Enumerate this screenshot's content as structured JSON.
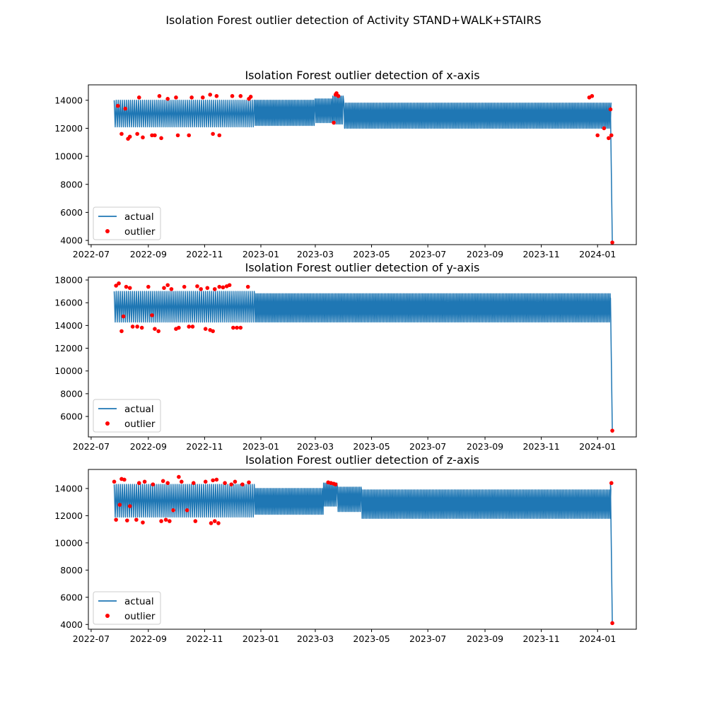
{
  "suptitle": "Isolation Forest outlier detection of Activity STAND+WALK+STAIRS",
  "colors": {
    "actual": "#1f77b4",
    "outlier": "#ff0000",
    "axes": "#000000"
  },
  "legend_labels": {
    "actual": "actual",
    "outlier": "outlier"
  },
  "x_tick_labels": [
    "2022-07",
    "2022-09",
    "2022-11",
    "2023-01",
    "2023-03",
    "2023-05",
    "2023-07",
    "2023-09",
    "2023-11",
    "2024-01"
  ],
  "chart_data": [
    {
      "type": "line",
      "title": "Isolation Forest outlier detection of x-axis",
      "xlabel": "",
      "ylabel": "",
      "x_range": [
        "2022-07-26",
        "2024-01-16"
      ],
      "y_ticks": [
        4000,
        6000,
        8000,
        10000,
        12000,
        14000
      ],
      "ylim": [
        3700,
        15100
      ],
      "legend": "lower-left",
      "grid": false,
      "series": [
        {
          "name": "actual",
          "style": "oscillating",
          "segments": [
            {
              "start": "2022-07-26",
              "end": "2022-12-25",
              "low": 12100,
              "high": 14000,
              "days_per_cycle": 2.2
            },
            {
              "start": "2022-12-25",
              "end": "2023-03-01",
              "low": 12200,
              "high": 14000,
              "days_per_cycle": 1.6
            },
            {
              "start": "2023-03-01",
              "end": "2023-03-20",
              "low": 12400,
              "high": 14100,
              "days_per_cycle": 1.6
            },
            {
              "start": "2023-03-20",
              "end": "2023-04-01",
              "low": 12300,
              "high": 14300,
              "days_per_cycle": 1.6
            },
            {
              "start": "2023-04-01",
              "end": "2024-01-16",
              "low": 12000,
              "high": 13800,
              "days_per_cycle": 1.6
            }
          ],
          "final_points": [
            {
              "x": "2024-01-15",
              "y": 13300
            },
            {
              "x": "2024-01-17",
              "y": 3850
            }
          ]
        },
        {
          "name": "outlier",
          "points": [
            {
              "x": "2022-07-30",
              "y": 13600
            },
            {
              "x": "2022-08-03",
              "y": 11600
            },
            {
              "x": "2022-08-07",
              "y": 13400
            },
            {
              "x": "2022-08-10",
              "y": 11250
            },
            {
              "x": "2022-08-12",
              "y": 11400
            },
            {
              "x": "2022-08-20",
              "y": 11600
            },
            {
              "x": "2022-08-22",
              "y": 14200
            },
            {
              "x": "2022-08-26",
              "y": 11350
            },
            {
              "x": "2022-09-05",
              "y": 11500
            },
            {
              "x": "2022-09-08",
              "y": 11500
            },
            {
              "x": "2022-09-13",
              "y": 14300
            },
            {
              "x": "2022-09-15",
              "y": 11300
            },
            {
              "x": "2022-09-22",
              "y": 14100
            },
            {
              "x": "2022-10-01",
              "y": 14200
            },
            {
              "x": "2022-10-03",
              "y": 11500
            },
            {
              "x": "2022-10-15",
              "y": 11500
            },
            {
              "x": "2022-10-18",
              "y": 14200
            },
            {
              "x": "2022-10-30",
              "y": 14200
            },
            {
              "x": "2022-11-07",
              "y": 14400
            },
            {
              "x": "2022-11-10",
              "y": 11600
            },
            {
              "x": "2022-11-14",
              "y": 14300
            },
            {
              "x": "2022-11-17",
              "y": 11500
            },
            {
              "x": "2022-12-01",
              "y": 14300
            },
            {
              "x": "2022-12-10",
              "y": 14300
            },
            {
              "x": "2022-12-19",
              "y": 14100
            },
            {
              "x": "2022-12-21",
              "y": 14250
            },
            {
              "x": "2023-03-21",
              "y": 12400
            },
            {
              "x": "2023-03-23",
              "y": 14400
            },
            {
              "x": "2023-03-24",
              "y": 14500
            },
            {
              "x": "2023-03-26",
              "y": 14300
            },
            {
              "x": "2023-12-23",
              "y": 14200
            },
            {
              "x": "2023-12-26",
              "y": 14300
            },
            {
              "x": "2024-01-01",
              "y": 11500
            },
            {
              "x": "2024-01-08",
              "y": 12000
            },
            {
              "x": "2024-01-13",
              "y": 11300
            },
            {
              "x": "2024-01-15",
              "y": 13350
            },
            {
              "x": "2024-01-16",
              "y": 11500
            },
            {
              "x": "2024-01-17",
              "y": 3850
            }
          ]
        }
      ]
    },
    {
      "type": "line",
      "title": "Isolation Forest outlier detection of y-axis",
      "xlabel": "",
      "ylabel": "",
      "x_range": [
        "2022-07-26",
        "2024-01-16"
      ],
      "y_ticks": [
        6000,
        8000,
        10000,
        12000,
        14000,
        16000,
        18000
      ],
      "ylim": [
        4200,
        18250
      ],
      "legend": "lower-left",
      "grid": false,
      "series": [
        {
          "name": "actual",
          "style": "oscillating",
          "segments": [
            {
              "start": "2022-07-26",
              "end": "2022-12-25",
              "low": 14300,
              "high": 17000,
              "days_per_cycle": 2.2
            },
            {
              "start": "2022-12-25",
              "end": "2024-01-16",
              "low": 14300,
              "high": 16800,
              "days_per_cycle": 1.6
            }
          ],
          "final_points": [
            {
              "x": "2024-01-15",
              "y": 16400
            },
            {
              "x": "2024-01-17",
              "y": 4750
            }
          ]
        },
        {
          "name": "outlier",
          "points": [
            {
              "x": "2022-07-28",
              "y": 17500
            },
            {
              "x": "2022-07-31",
              "y": 17700
            },
            {
              "x": "2022-08-03",
              "y": 13500
            },
            {
              "x": "2022-08-05",
              "y": 14800
            },
            {
              "x": "2022-08-08",
              "y": 17400
            },
            {
              "x": "2022-08-12",
              "y": 17300
            },
            {
              "x": "2022-08-15",
              "y": 13900
            },
            {
              "x": "2022-08-20",
              "y": 13900
            },
            {
              "x": "2022-08-25",
              "y": 13800
            },
            {
              "x": "2022-09-01",
              "y": 17400
            },
            {
              "x": "2022-09-05",
              "y": 14900
            },
            {
              "x": "2022-09-08",
              "y": 13700
            },
            {
              "x": "2022-09-12",
              "y": 13500
            },
            {
              "x": "2022-09-18",
              "y": 17300
            },
            {
              "x": "2022-09-22",
              "y": 17550
            },
            {
              "x": "2022-09-26",
              "y": 17200
            },
            {
              "x": "2022-10-01",
              "y": 13700
            },
            {
              "x": "2022-10-04",
              "y": 13800
            },
            {
              "x": "2022-10-10",
              "y": 17400
            },
            {
              "x": "2022-10-15",
              "y": 13900
            },
            {
              "x": "2022-10-19",
              "y": 13900
            },
            {
              "x": "2022-10-24",
              "y": 17450
            },
            {
              "x": "2022-10-28",
              "y": 17200
            },
            {
              "x": "2022-11-02",
              "y": 13700
            },
            {
              "x": "2022-11-04",
              "y": 17300
            },
            {
              "x": "2022-11-07",
              "y": 13600
            },
            {
              "x": "2022-11-10",
              "y": 13500
            },
            {
              "x": "2022-11-12",
              "y": 17200
            },
            {
              "x": "2022-11-17",
              "y": 17400
            },
            {
              "x": "2022-11-21",
              "y": 17350
            },
            {
              "x": "2022-11-25",
              "y": 17450
            },
            {
              "x": "2022-11-28",
              "y": 17550
            },
            {
              "x": "2022-12-02",
              "y": 13800
            },
            {
              "x": "2022-12-06",
              "y": 13800
            },
            {
              "x": "2022-12-10",
              "y": 13800
            },
            {
              "x": "2022-12-18",
              "y": 17400
            },
            {
              "x": "2024-01-17",
              "y": 4750
            }
          ]
        }
      ]
    },
    {
      "type": "line",
      "title": "Isolation Forest outlier detection of z-axis",
      "xlabel": "",
      "ylabel": "",
      "x_range": [
        "2022-07-26",
        "2024-01-16"
      ],
      "y_ticks": [
        4000,
        6000,
        8000,
        10000,
        12000,
        14000
      ],
      "ylim": [
        3650,
        15400
      ],
      "legend": "lower-left",
      "grid": false,
      "series": [
        {
          "name": "actual",
          "style": "oscillating",
          "segments": [
            {
              "start": "2022-07-26",
              "end": "2022-12-25",
              "low": 11900,
              "high": 14300,
              "days_per_cycle": 2.2
            },
            {
              "start": "2022-12-25",
              "end": "2023-03-10",
              "low": 12100,
              "high": 14000,
              "days_per_cycle": 1.6
            },
            {
              "start": "2023-03-10",
              "end": "2023-03-25",
              "low": 12700,
              "high": 14400,
              "days_per_cycle": 1.6
            },
            {
              "start": "2023-03-25",
              "end": "2023-04-20",
              "low": 12300,
              "high": 14100,
              "days_per_cycle": 1.6
            },
            {
              "start": "2023-04-20",
              "end": "2024-01-16",
              "low": 11800,
              "high": 13900,
              "days_per_cycle": 1.6
            }
          ],
          "final_points": [
            {
              "x": "2024-01-15",
              "y": 14350
            },
            {
              "x": "2024-01-17",
              "y": 4100
            }
          ]
        },
        {
          "name": "outlier",
          "points": [
            {
              "x": "2022-07-26",
              "y": 14500
            },
            {
              "x": "2022-07-28",
              "y": 11700
            },
            {
              "x": "2022-08-01",
              "y": 12800
            },
            {
              "x": "2022-08-03",
              "y": 14700
            },
            {
              "x": "2022-08-06",
              "y": 14650
            },
            {
              "x": "2022-08-09",
              "y": 11650
            },
            {
              "x": "2022-08-12",
              "y": 12700
            },
            {
              "x": "2022-08-19",
              "y": 11700
            },
            {
              "x": "2022-08-22",
              "y": 14400
            },
            {
              "x": "2022-08-26",
              "y": 11500
            },
            {
              "x": "2022-08-28",
              "y": 14500
            },
            {
              "x": "2022-09-06",
              "y": 14300
            },
            {
              "x": "2022-09-15",
              "y": 11600
            },
            {
              "x": "2022-09-17",
              "y": 14550
            },
            {
              "x": "2022-09-20",
              "y": 11700
            },
            {
              "x": "2022-09-22",
              "y": 14400
            },
            {
              "x": "2022-09-24",
              "y": 11600
            },
            {
              "x": "2022-09-28",
              "y": 12400
            },
            {
              "x": "2022-10-04",
              "y": 14850
            },
            {
              "x": "2022-10-07",
              "y": 14500
            },
            {
              "x": "2022-10-13",
              "y": 12400
            },
            {
              "x": "2022-10-20",
              "y": 14400
            },
            {
              "x": "2022-10-22",
              "y": 11600
            },
            {
              "x": "2022-11-02",
              "y": 14500
            },
            {
              "x": "2022-11-08",
              "y": 11450
            },
            {
              "x": "2022-11-10",
              "y": 14600
            },
            {
              "x": "2022-11-12",
              "y": 11600
            },
            {
              "x": "2022-11-14",
              "y": 14650
            },
            {
              "x": "2022-11-16",
              "y": 11450
            },
            {
              "x": "2022-11-23",
              "y": 14400
            },
            {
              "x": "2022-11-30",
              "y": 14300
            },
            {
              "x": "2022-12-04",
              "y": 14500
            },
            {
              "x": "2022-12-12",
              "y": 14300
            },
            {
              "x": "2022-12-19",
              "y": 14450
            },
            {
              "x": "2023-03-15",
              "y": 14450
            },
            {
              "x": "2023-03-18",
              "y": 14400
            },
            {
              "x": "2023-03-21",
              "y": 14350
            },
            {
              "x": "2023-03-23",
              "y": 14300
            },
            {
              "x": "2024-01-16",
              "y": 14400
            },
            {
              "x": "2024-01-17",
              "y": 4100
            }
          ]
        }
      ]
    }
  ]
}
